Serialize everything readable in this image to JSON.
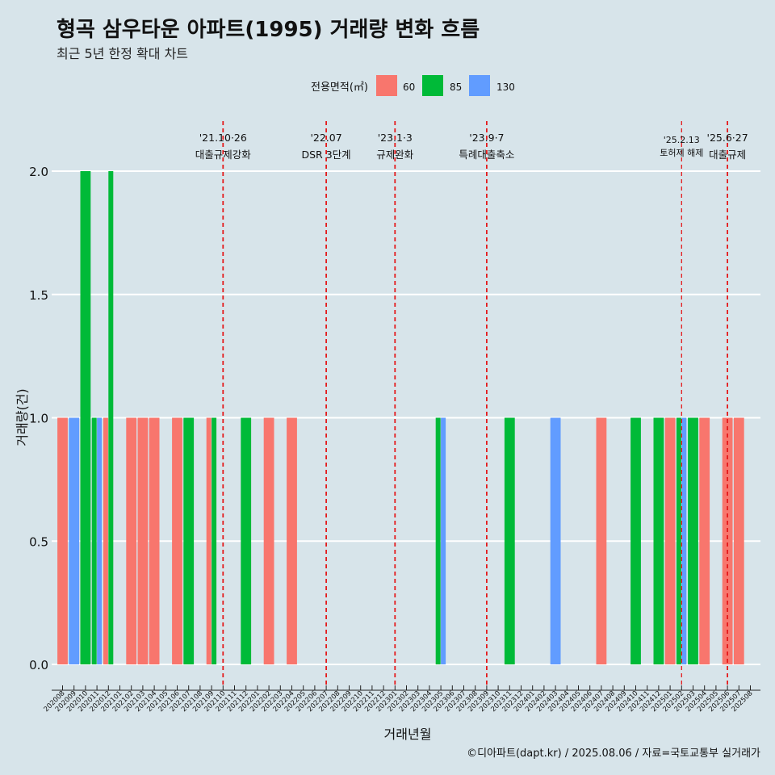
{
  "title": "형곡 삼우타운 아파트(1995) 거래량 변화 흐름",
  "subtitle": "최근 5년 한정 확대 차트",
  "caption": "©디아파트(dapt.kr) / 2025.08.06 / 자료=국토교통부 실거래가",
  "legend": {
    "title": "전용면적(㎡)",
    "items": [
      {
        "label": "60",
        "color": "#f8766d"
      },
      {
        "label": "85",
        "color": "#00ba38"
      },
      {
        "label": "130",
        "color": "#619cff"
      }
    ]
  },
  "chart_data": {
    "type": "bar",
    "xlabel": "거래년월",
    "ylabel": "거래량(건)",
    "ylim": [
      0,
      2
    ],
    "yticks": [
      "0.0",
      "0.5",
      "1.0",
      "1.5",
      "2.0"
    ],
    "grid": true,
    "legend_position": "top",
    "categories": [
      "202008",
      "202009",
      "202010",
      "202011",
      "202012",
      "202101",
      "202102",
      "202103",
      "202104",
      "202105",
      "202106",
      "202107",
      "202108",
      "202109",
      "202110",
      "202111",
      "202112",
      "202201",
      "202202",
      "202203",
      "202204",
      "202205",
      "202206",
      "202207",
      "202208",
      "202209",
      "202210",
      "202211",
      "202212",
      "202301",
      "202302",
      "202303",
      "202304",
      "202305",
      "202306",
      "202307",
      "202308",
      "202309",
      "202310",
      "202311",
      "202312",
      "202401",
      "202402",
      "202403",
      "202404",
      "202405",
      "202406",
      "202407",
      "202408",
      "202409",
      "202410",
      "202411",
      "202412",
      "202501",
      "202502",
      "202503",
      "202504",
      "202505",
      "202506",
      "202507",
      "202508"
    ],
    "bars": [
      {
        "x": "202008",
        "size": "60",
        "value": 1
      },
      {
        "x": "202009",
        "size": "130",
        "value": 1
      },
      {
        "x": "202010",
        "size": "85",
        "value": 2
      },
      {
        "x": "202011",
        "size": "85",
        "value": 1
      },
      {
        "x": "202011",
        "size": "130",
        "value": 1
      },
      {
        "x": "202012",
        "size": "60",
        "value": 1
      },
      {
        "x": "202012",
        "size": "85",
        "value": 2
      },
      {
        "x": "202102",
        "size": "60",
        "value": 1
      },
      {
        "x": "202103",
        "size": "60",
        "value": 1
      },
      {
        "x": "202104",
        "size": "60",
        "value": 1
      },
      {
        "x": "202106",
        "size": "60",
        "value": 1
      },
      {
        "x": "202107",
        "size": "85",
        "value": 1
      },
      {
        "x": "202109",
        "size": "60",
        "value": 1
      },
      {
        "x": "202109",
        "size": "85",
        "value": 1
      },
      {
        "x": "202112",
        "size": "85",
        "value": 1
      },
      {
        "x": "202202",
        "size": "60",
        "value": 1
      },
      {
        "x": "202204",
        "size": "60",
        "value": 1
      },
      {
        "x": "202305",
        "size": "85",
        "value": 1
      },
      {
        "x": "202305",
        "size": "130",
        "value": 1
      },
      {
        "x": "202311",
        "size": "85",
        "value": 1
      },
      {
        "x": "202403",
        "size": "130",
        "value": 1
      },
      {
        "x": "202407",
        "size": "60",
        "value": 1
      },
      {
        "x": "202410",
        "size": "85",
        "value": 1
      },
      {
        "x": "202412",
        "size": "85",
        "value": 1
      },
      {
        "x": "202501",
        "size": "60",
        "value": 1
      },
      {
        "x": "202502",
        "size": "85",
        "value": 1
      },
      {
        "x": "202502",
        "size": "130",
        "value": 1
      },
      {
        "x": "202503",
        "size": "85",
        "value": 1
      },
      {
        "x": "202504",
        "size": "60",
        "value": 1
      },
      {
        "x": "202506",
        "size": "60",
        "value": 1
      },
      {
        "x": "202507",
        "size": "60",
        "value": 1
      }
    ],
    "events": [
      {
        "date": "'21.10·26",
        "label": "대출규제강화",
        "x": "202110",
        "small": false
      },
      {
        "date": "'22.07",
        "label": "DSR 3단계",
        "x": "202207",
        "small": false
      },
      {
        "date": "'23.1·3",
        "label": "규제완화",
        "x": "202301",
        "small": false
      },
      {
        "date": "'23.9·7",
        "label": "특례대출축소",
        "x": "202309",
        "small": false
      },
      {
        "date": "'25.2.13",
        "label": "토허제 해제",
        "x": "202502",
        "small": true
      },
      {
        "date": "'25.6·27",
        "label": "대출규제",
        "x": "202506",
        "small": false
      }
    ]
  }
}
